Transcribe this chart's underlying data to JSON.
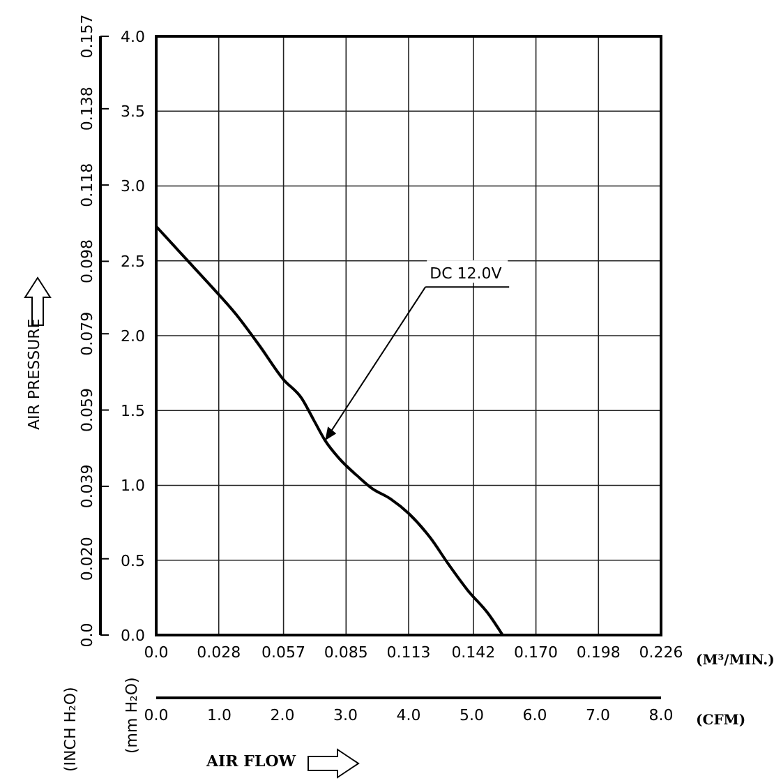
{
  "chart_data": {
    "type": "line",
    "xlabel": "AIR FLOW",
    "annotations": [
      "(M³/MIN.)",
      "(CFM)",
      "(mm H₂O)",
      "(INCH H₂O)",
      "AIR PRESSURE",
      {
        "text": "DC 12.0V",
        "x": 0.0756,
        "y": 1.3
      }
    ],
    "x": [
      0,
      0.0129,
      0.0234,
      0.0359,
      0.0464,
      0.0568,
      0.0652,
      0.0704,
      0.0756,
      0.0819,
      0.0903,
      0.0966,
      0.1049,
      0.1132,
      0.1227,
      0.131,
      0.1394,
      0.1488,
      0.1551
    ],
    "series": [
      {
        "color": "#000000",
        "values": [
          2.73,
          2.52,
          2.35,
          2.14,
          1.93,
          1.71,
          1.58,
          1.44,
          1.3,
          1.18,
          1.06,
          0.98,
          0.91,
          0.81,
          0.65,
          0.47,
          0.3,
          0.14,
          0
        ]
      }
    ],
    "xlim": [
      0,
      0.226
    ],
    "xticks": [
      {
        "value": 0,
        "label": "0.0"
      },
      0.028,
      0.057,
      0.085,
      0.113,
      0.142,
      {
        "value": 0.17,
        "label": "0.170"
      },
      0.198,
      0.226
    ],
    "x2lim": [
      0,
      8
    ],
    "x2ticks": [
      {
        "value": 0,
        "label": "0.0"
      },
      {
        "value": 1,
        "label": "1.0"
      },
      {
        "value": 2,
        "label": "2.0"
      },
      {
        "value": 3,
        "label": "3.0"
      },
      {
        "value": 4,
        "label": "4.0"
      },
      {
        "value": 5,
        "label": "5.0"
      },
      {
        "value": 6,
        "label": "6.0"
      },
      {
        "value": 7,
        "label": "7.0"
      },
      {
        "value": 8,
        "label": "8.0"
      }
    ],
    "ylim": [
      0,
      4
    ],
    "yticks": [
      {
        "value": 0,
        "label": "0.0"
      },
      {
        "value": 0.5,
        "label": "0.5"
      },
      {
        "value": 1,
        "label": "1.0"
      },
      {
        "value": 1.5,
        "label": "1.5"
      },
      {
        "value": 2,
        "label": "2.0"
      },
      {
        "value": 2.5,
        "label": "2.5"
      },
      {
        "value": 3,
        "label": "3.0"
      },
      {
        "value": 3.5,
        "label": "3.5"
      },
      {
        "value": 4,
        "label": "4.0"
      }
    ],
    "y2lim": [
      0,
      0.157
    ],
    "y2ticks": [
      {
        "value": 0,
        "label": "0.0"
      },
      {
        "value": 0.02,
        "label": "0.020"
      },
      0.039,
      0.059,
      0.079,
      0.098,
      0.118,
      0.138,
      0.157
    ],
    "grid": true,
    "marker": "none",
    "line_style": "solid"
  }
}
